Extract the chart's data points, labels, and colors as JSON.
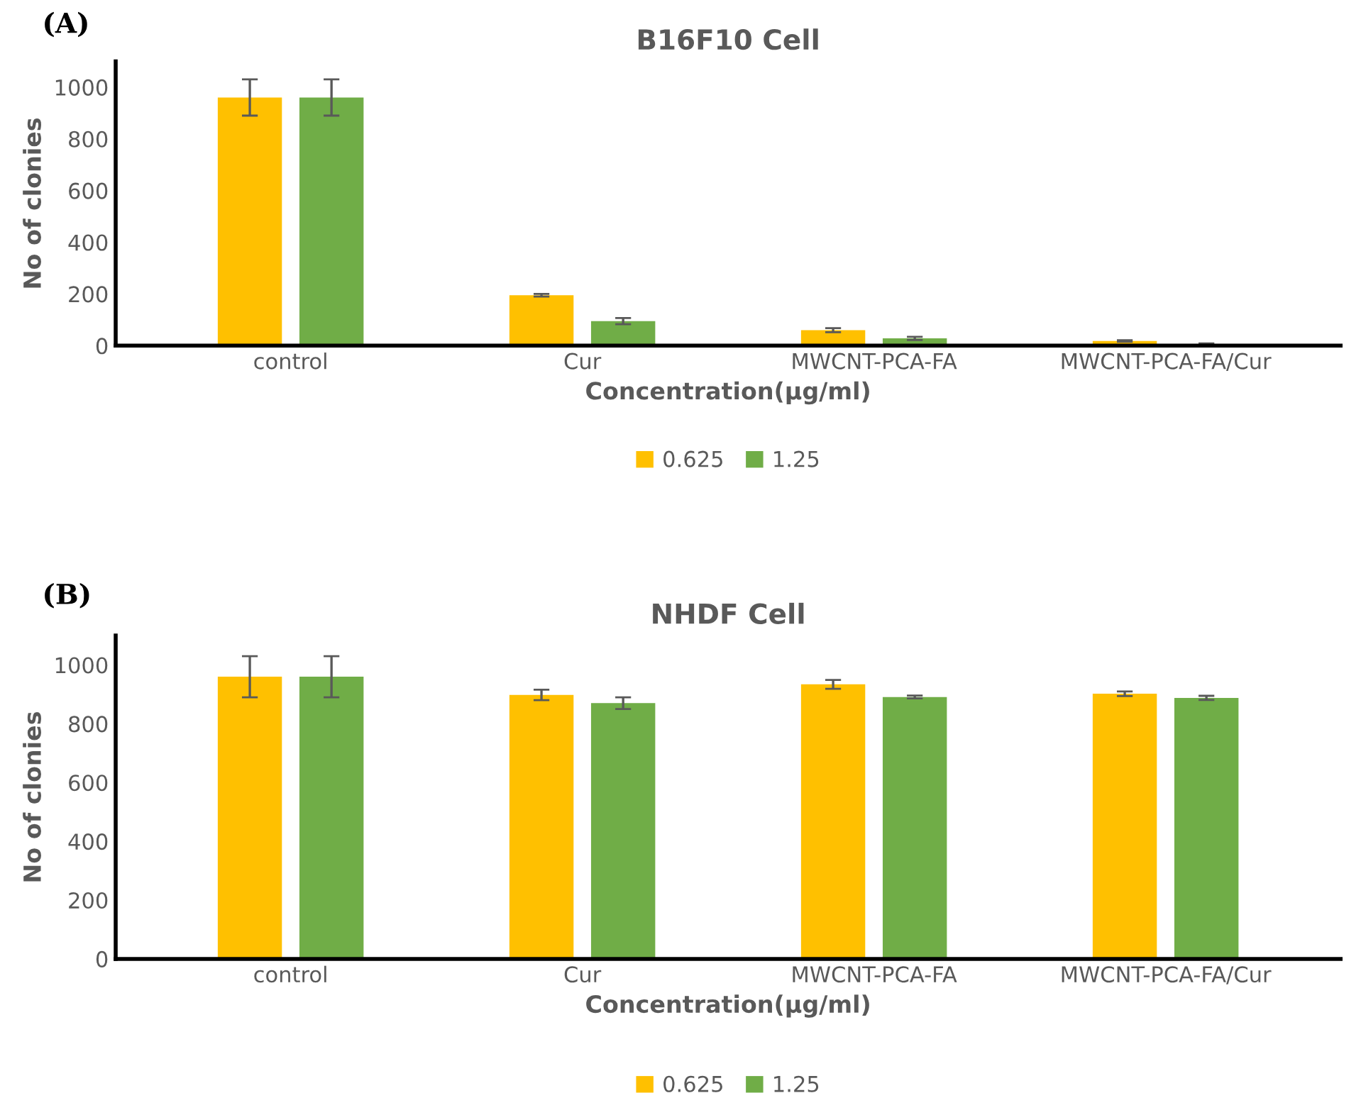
{
  "chart_data": [
    {
      "type": "bar",
      "title": "B16F10 Cell",
      "xlabel": "Concentration(µg/ml)",
      "ylabel": "No of clonies",
      "annotations": [
        "(A)"
      ],
      "categories": [
        "control",
        "Cur",
        "MWCNT-PCA-FA",
        "MWCNT-PCA-FA/Cur"
      ],
      "series": [
        {
          "name": "0.625",
          "color": "#ffc000",
          "values": [
            960,
            195,
            60,
            18
          ],
          "errors": [
            70,
            5,
            8,
            3
          ]
        },
        {
          "name": "1.25",
          "color": "#70ad47",
          "values": [
            960,
            95,
            28,
            6
          ],
          "errors": [
            70,
            12,
            6,
            3
          ]
        }
      ],
      "ylim": [
        0,
        1100
      ],
      "yticks": [
        0,
        200,
        400,
        600,
        800,
        1000
      ],
      "grid": false,
      "legend": "bottom"
    },
    {
      "type": "bar",
      "title": "NHDF Cell",
      "xlabel": "Concentration(µg/ml)",
      "ylabel": "No of clonies",
      "annotations": [
        "(B)"
      ],
      "categories": [
        "control",
        "Cur",
        "MWCNT-PCA-FA",
        "MWCNT-PCA-FA/Cur"
      ],
      "series": [
        {
          "name": "0.625",
          "color": "#ffc000",
          "values": [
            960,
            898,
            934,
            902
          ],
          "errors": [
            70,
            18,
            15,
            8
          ]
        },
        {
          "name": "1.25",
          "color": "#70ad47",
          "values": [
            960,
            870,
            891,
            888
          ],
          "errors": [
            70,
            20,
            5,
            7
          ]
        }
      ],
      "ylim": [
        0,
        1100
      ],
      "yticks": [
        0,
        200,
        400,
        600,
        800,
        1000
      ],
      "grid": false,
      "legend": "bottom"
    }
  ]
}
